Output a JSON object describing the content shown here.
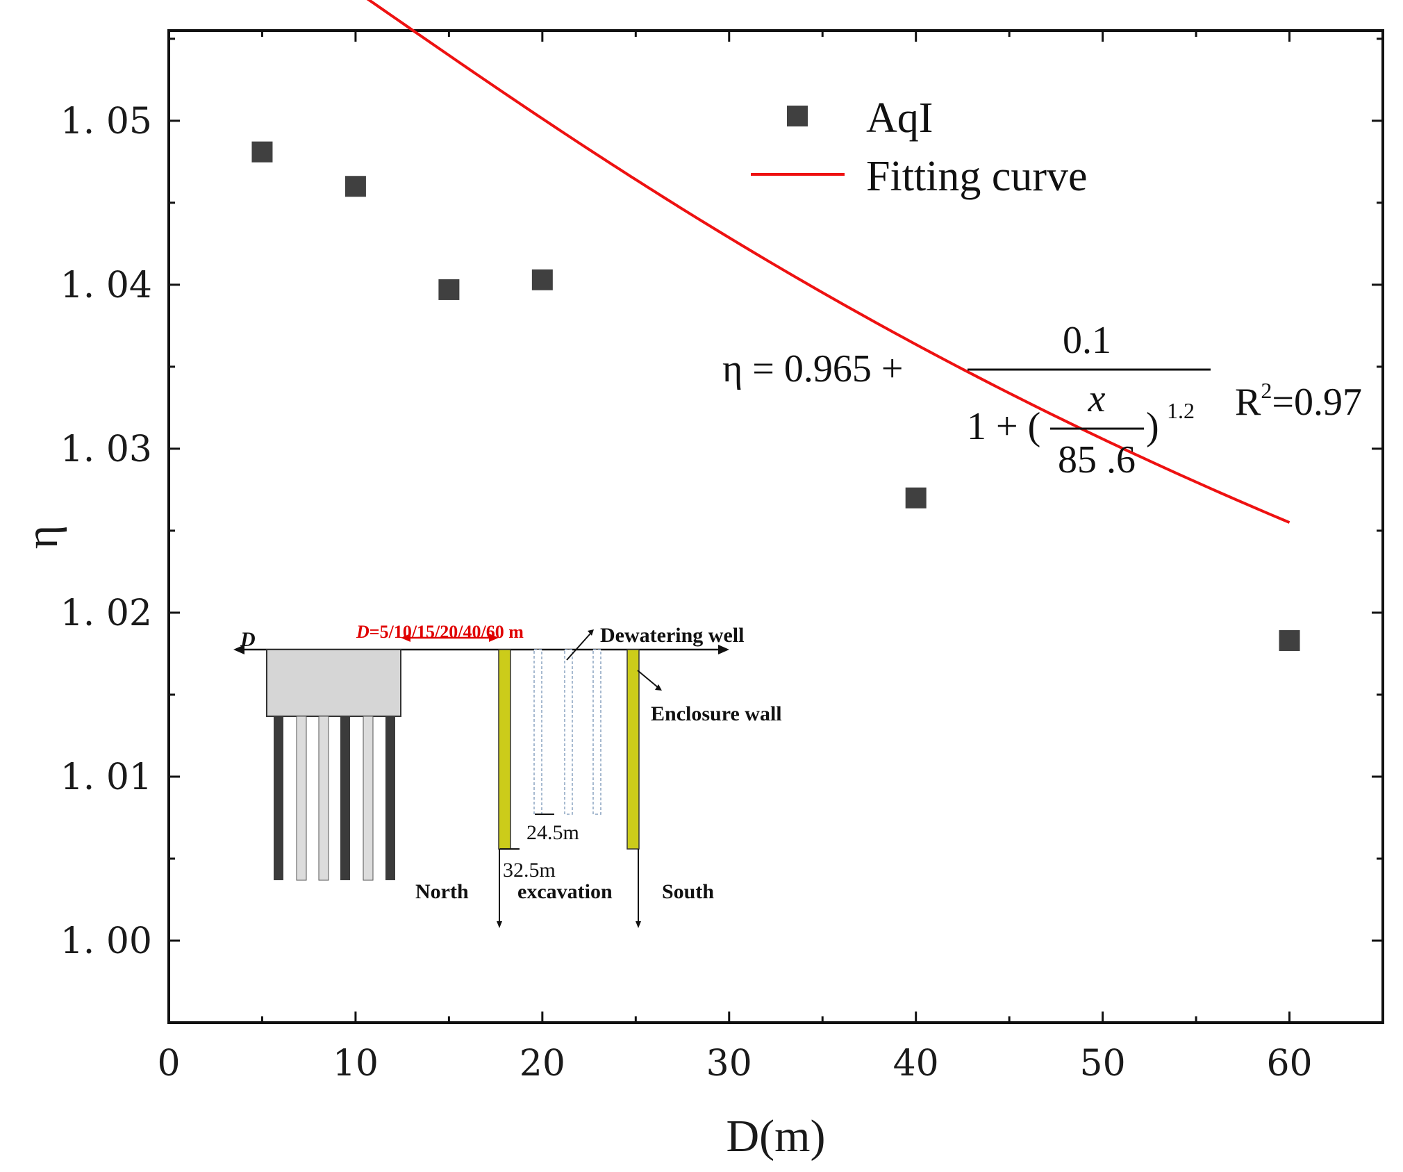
{
  "chart_data": {
    "type": "scatter",
    "xlabel": "D(m)",
    "ylabel": "η",
    "xlim": [
      0,
      65
    ],
    "ylim": [
      0.995,
      1.0555
    ],
    "x_ticks": [
      0,
      10,
      20,
      30,
      40,
      50,
      60
    ],
    "x_tick_labels": [
      "0",
      "10",
      "20",
      "30",
      "40",
      "50",
      "60"
    ],
    "y_ticks": [
      1.0,
      1.01,
      1.02,
      1.03,
      1.04,
      1.05
    ],
    "y_tick_labels": [
      "1. 00",
      "1. 01",
      "1. 02",
      "1. 03",
      "1. 04",
      "1. 05"
    ],
    "series": [
      {
        "name": "AqI",
        "kind": "scatter",
        "marker": "square",
        "color": "#404040",
        "x": [
          5,
          10,
          15,
          20,
          40,
          60
        ],
        "y": [
          1.0481,
          1.046,
          1.0397,
          1.0403,
          1.027,
          1.0183
        ]
      },
      {
        "name": "Fitting curve",
        "kind": "line",
        "color": "#ee1111",
        "formula": {
          "a": 0.965,
          "b": 0.1,
          "c": 85.6,
          "p": 1.2
        },
        "x_range": [
          5,
          60
        ]
      }
    ],
    "legend": {
      "position": "top-right",
      "entries": [
        "AqI",
        "Fitting curve"
      ]
    },
    "equation": {
      "lhs": "η = 0.965 +",
      "numerator": "0.1",
      "denominator_prefix": "1 + (",
      "inner_numerator": "x",
      "inner_denominator": "85 .6",
      "denominator_suffix": ")",
      "exponent": "1.2",
      "r2_base": "R",
      "r2_sup": "2",
      "r2_value": "=0.97"
    },
    "inset": {
      "d_symbol": "D",
      "distance_label_italic": "D",
      "distance_label_rest": "=5/10/15/20/40/60 m",
      "dewatering_well": "Dewatering well",
      "enclosure_wall": "Enclosure wall",
      "depth_well": "24.5m",
      "depth_wall": "32.5m",
      "north": "North",
      "excavation": "excavation",
      "south": "South"
    }
  }
}
